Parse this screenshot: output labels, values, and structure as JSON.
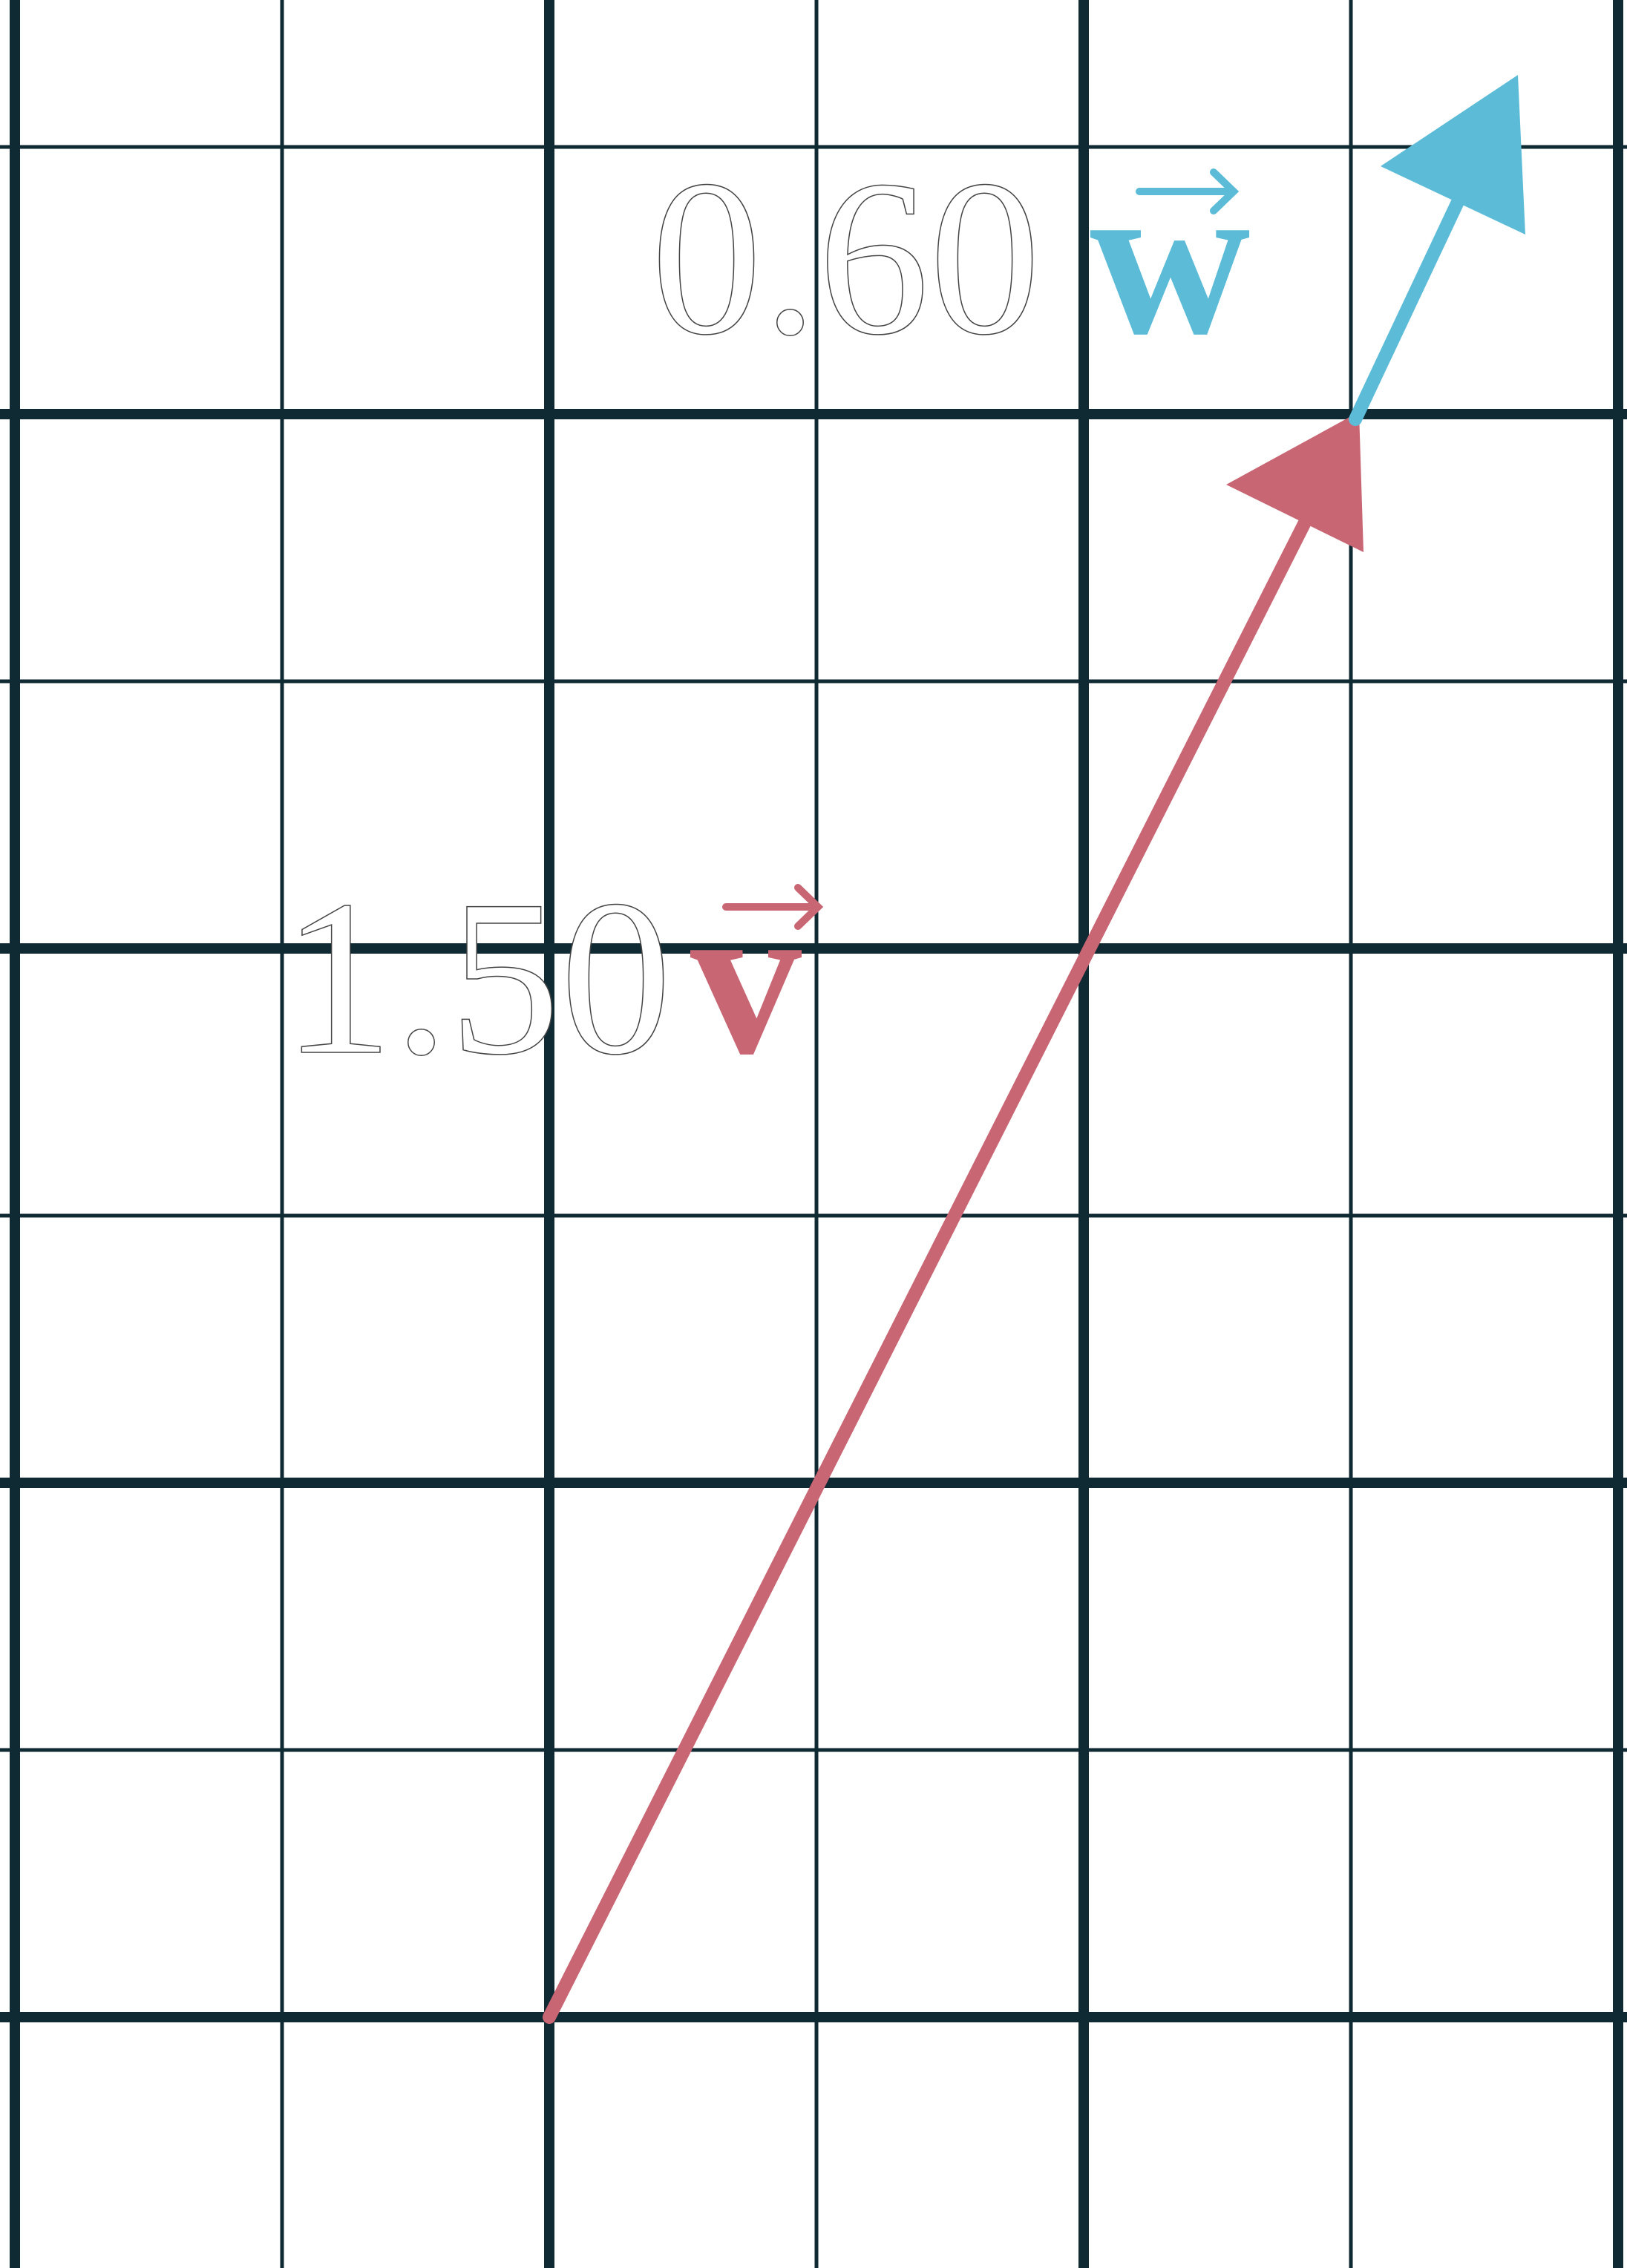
{
  "labels": [
    {
      "coefficient": "0.60",
      "vector": "w"
    },
    {
      "coefficient": "1.50",
      "vector": "v"
    }
  ]
}
